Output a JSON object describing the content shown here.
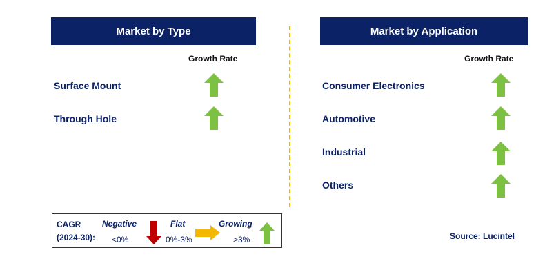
{
  "left_panel": {
    "title": "Market by Type",
    "growth_label": "Growth Rate",
    "rows": [
      {
        "label": "Surface Mount",
        "trend": "up"
      },
      {
        "label": "Through Hole",
        "trend": "up"
      }
    ]
  },
  "right_panel": {
    "title": "Market by Application",
    "growth_label": "Growth Rate",
    "rows": [
      {
        "label": "Consumer Electronics",
        "trend": "up"
      },
      {
        "label": "Automotive",
        "trend": "up"
      },
      {
        "label": "Industrial",
        "trend": "up"
      },
      {
        "label": "Others",
        "trend": "up"
      }
    ]
  },
  "legend": {
    "cagr_line1": "CAGR",
    "cagr_line2": "(2024-30):",
    "negative_label": "Negative",
    "negative_range": "<0%",
    "flat_label": "Flat",
    "flat_range": "0%-3%",
    "growing_label": "Growing",
    "growing_range": ">3%"
  },
  "source": "Source: Lucintel",
  "colors": {
    "header_bg": "#0c2266",
    "arrow_up": "#7dc142",
    "arrow_down": "#c00000",
    "arrow_flat": "#f5b800",
    "divider": "#f0b400"
  }
}
